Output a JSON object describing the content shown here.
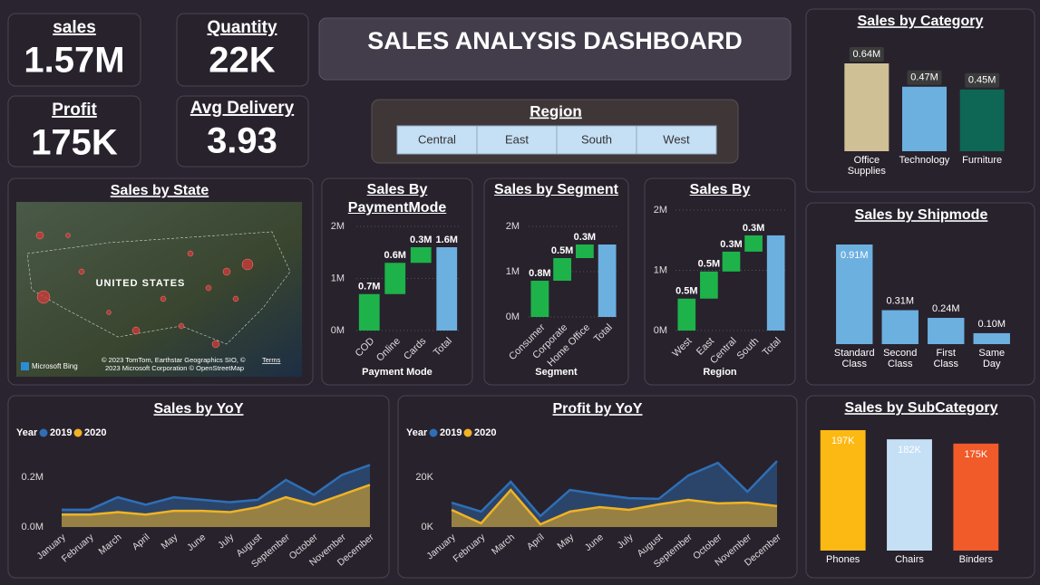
{
  "kpis": [
    {
      "label": "sales",
      "value": "1.57M"
    },
    {
      "label": "Quantity",
      "value": "22K"
    },
    {
      "label": "Profit",
      "value": "175K"
    },
    {
      "label": "Avg Delivery",
      "value": "3.93"
    }
  ],
  "header": {
    "title": "SALES ANALYSIS DASHBOARD"
  },
  "region_filter": {
    "title": "Region",
    "options": [
      "Central",
      "East",
      "South",
      "West"
    ]
  },
  "map": {
    "title": "Sales by State",
    "country_label": "UNITED STATES",
    "provider": "Microsoft Bing",
    "attribution": [
      "© 2023 TomTom, Earthstar Geographics SIO, ©",
      "2023 Microsoft Corporation © OpenStreetMap"
    ],
    "terms": "Terms"
  },
  "chart_data": [
    {
      "type": "bar",
      "title": "Sales by Category",
      "categories": [
        "Office Supplies",
        "Technology",
        "Furniture"
      ],
      "values": [
        0.64,
        0.47,
        0.45
      ],
      "value_labels": [
        "0.64M",
        "0.47M",
        "0.45M"
      ],
      "colors": [
        "#d0c095",
        "#6cb0e0",
        "#0e6655"
      ]
    },
    {
      "type": "bar",
      "title": "Sales by Shipmode",
      "categories": [
        "Standard Class",
        "Second Class",
        "First Class",
        "Same Day"
      ],
      "values": [
        0.91,
        0.31,
        0.24,
        0.1
      ],
      "value_labels": [
        "0.91M",
        "0.31M",
        "0.24M",
        "0.10M"
      ],
      "color": "#6cb0e0"
    },
    {
      "type": "bar",
      "title": "Sales by SubCategory",
      "categories": [
        "Phones",
        "Chairs",
        "Binders"
      ],
      "values": [
        197,
        182,
        175
      ],
      "value_labels": [
        "197K",
        "182K",
        "175K"
      ],
      "colors": [
        "#fdb913",
        "#c5dff5",
        "#f15a29"
      ]
    },
    {
      "type": "waterfall",
      "title": "Sales By PaymentMode",
      "xlabel": "Payment Mode",
      "categories": [
        "COD",
        "Online",
        "Cards",
        "Total"
      ],
      "values": [
        0.7,
        0.6,
        0.3,
        1.6
      ],
      "value_labels": [
        "0.7M",
        "0.6M",
        "0.3M",
        "1.6M"
      ],
      "ylim": [
        0,
        2
      ],
      "yticks": [
        {
          "value": 0,
          "label": "0M"
        },
        {
          "value": 1,
          "label": "1M"
        },
        {
          "value": 2,
          "label": "2M"
        }
      ],
      "color": "#1db34a",
      "total_color": "#6cb0e0",
      "grid": true
    },
    {
      "type": "waterfall",
      "title": "Sales by Segment",
      "xlabel": "Segment",
      "categories": [
        "Consumer",
        "Corporate",
        "Home Office",
        "Total"
      ],
      "values": [
        0.8,
        0.5,
        0.3,
        1.6
      ],
      "value_labels": [
        "0.8M",
        "0.5M",
        "0.3M",
        null
      ],
      "ylim": [
        0,
        2
      ],
      "yticks": [
        {
          "value": 0,
          "label": "0M"
        },
        {
          "value": 1,
          "label": "1M"
        },
        {
          "value": 2,
          "label": "2M"
        }
      ],
      "color": "#1db34a",
      "total_color": "#6cb0e0",
      "grid": true
    },
    {
      "type": "waterfall",
      "title": "Sales By",
      "xlabel": "Region",
      "categories": [
        "West",
        "East",
        "Central",
        "South",
        "Total"
      ],
      "values": [
        0.53,
        0.45,
        0.33,
        0.27,
        1.58
      ],
      "value_labels": [
        "0.5M",
        "0.5M",
        "0.3M",
        "0.3M",
        null
      ],
      "ylim": [
        0,
        2
      ],
      "yticks": [
        {
          "value": 0,
          "label": "0M"
        },
        {
          "value": 1,
          "label": "1M"
        },
        {
          "value": 2,
          "label": "2M"
        }
      ],
      "color": "#1db34a",
      "total_color": "#6cb0e0",
      "grid": true
    },
    {
      "type": "area",
      "title": "Sales by YoY",
      "legend_title": "Year",
      "x": [
        "January",
        "February",
        "March",
        "April",
        "May",
        "June",
        "July",
        "August",
        "September",
        "October",
        "November",
        "December"
      ],
      "series": [
        {
          "name": "2019",
          "color": "#2f6fb5",
          "values": [
            0.07,
            0.07,
            0.12,
            0.09,
            0.12,
            0.11,
            0.1,
            0.11,
            0.19,
            0.13,
            0.21,
            0.25
          ]
        },
        {
          "name": "2020",
          "color": "#f0b323",
          "values": [
            0.05,
            0.05,
            0.06,
            0.05,
            0.065,
            0.065,
            0.06,
            0.08,
            0.12,
            0.09,
            0.13,
            0.17
          ]
        }
      ],
      "ylim": [
        0,
        0.27
      ],
      "yticks": [
        {
          "value": 0,
          "label": "0.0M"
        },
        {
          "value": 0.2,
          "label": "0.2M"
        }
      ]
    },
    {
      "type": "area",
      "title": "Profit by YoY",
      "legend_title": "Year",
      "x": [
        "January",
        "February",
        "March",
        "April",
        "May",
        "June",
        "July",
        "August",
        "September",
        "October",
        "November",
        "December"
      ],
      "series": [
        {
          "name": "2019",
          "color": "#2f6fb5",
          "values": [
            9.8,
            6.2,
            18.2,
            4.4,
            14.9,
            13.1,
            11.6,
            11.3,
            20.7,
            25.8,
            14.2,
            26.5
          ]
        },
        {
          "name": "2020",
          "color": "#f0b323",
          "values": [
            6.9,
            1.5,
            14.9,
            1.1,
            6.2,
            8.0,
            6.9,
            9.1,
            10.9,
            9.5,
            9.8,
            8.4
          ]
        }
      ],
      "ylim": [
        0,
        28
      ],
      "yticks": [
        {
          "value": 0,
          "label": "0K"
        },
        {
          "value": 20,
          "label": "20K"
        }
      ]
    }
  ]
}
